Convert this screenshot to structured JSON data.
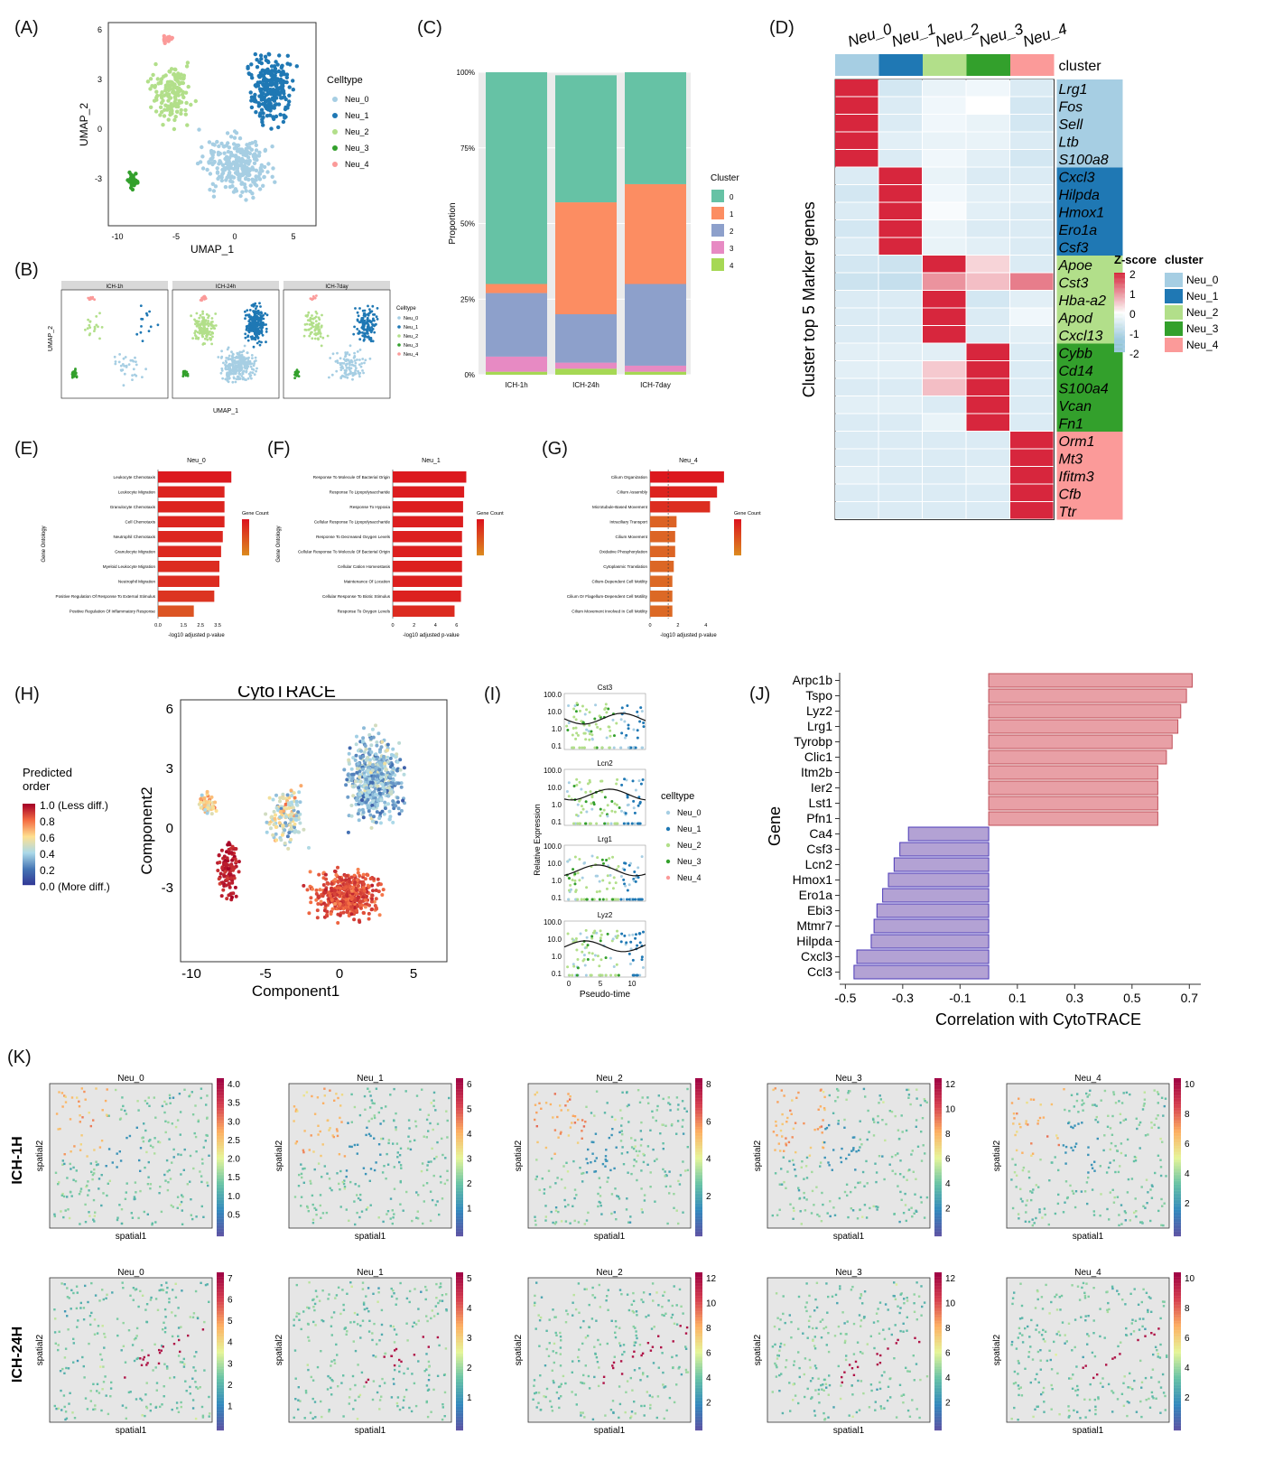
{
  "panel_labels": [
    "(A)",
    "(B)",
    "(C)",
    "(D)",
    "(E)",
    "(F)",
    "(G)",
    "(H)",
    "(I)",
    "(J)",
    "(K)"
  ],
  "colors": {
    "neu_0": "#a6cee3",
    "neu_1": "#1f78b4",
    "neu_2": "#b2df8a",
    "neu_3": "#33a02c",
    "neu_4": "#fb9a99",
    "c0": "#66c2a5",
    "c1": "#fc8d62",
    "c2": "#8da0cb",
    "c3": "#e78ac3",
    "c4": "#a6d854",
    "heat_high": "#d7263d",
    "heat_low": "#9ecae1",
    "corr_pos": "#e8a0a6",
    "corr_neg": "#b3a2d4"
  },
  "panelA": {
    "xlabel": "UMAP_1",
    "ylabel": "UMAP_2",
    "xticks": [
      "-10",
      "-5",
      "0",
      "5"
    ],
    "yticks": [
      "6",
      "3",
      "0",
      "-3"
    ],
    "legend_title": "Celltype",
    "legend": [
      "Neu_0",
      "Neu_1",
      "Neu_2",
      "Neu_3",
      "Neu_4"
    ]
  },
  "panelB": {
    "facets": [
      "ICH-1h",
      "ICH-24h",
      "ICH-7day"
    ],
    "xlabel": "UMAP_1",
    "ylabel": "UMAP_2",
    "legend_title": "Celltype",
    "legend": [
      "Neu_0",
      "Neu_1",
      "Neu_2",
      "Neu_3",
      "Neu_4"
    ]
  },
  "chart_data": [
    {
      "panel": "C",
      "type": "bar",
      "stacked": true,
      "categories": [
        "ICH-1h",
        "ICH-24h",
        "ICH-7day"
      ],
      "ylabel": "Proportion",
      "yticks": [
        "0%",
        "25%",
        "50%",
        "75%",
        "100%"
      ],
      "legend_title": "Cluster",
      "series": [
        {
          "name": "0",
          "values": [
            0.7,
            0.42,
            0.37
          ]
        },
        {
          "name": "1",
          "values": [
            0.03,
            0.37,
            0.33
          ]
        },
        {
          "name": "2",
          "values": [
            0.21,
            0.16,
            0.27
          ]
        },
        {
          "name": "3",
          "values": [
            0.05,
            0.02,
            0.02
          ]
        },
        {
          "name": "4",
          "values": [
            0.01,
            0.02,
            0.01
          ]
        }
      ]
    },
    {
      "panel": "D",
      "type": "heatmap",
      "columns": [
        "Neu_0",
        "Neu_1",
        "Neu_2",
        "Neu_3",
        "Neu_4"
      ],
      "column_annotation_title": "cluster",
      "ylabel": "Cluster top 5 Marker genes",
      "rows": [
        "Lrg1",
        "Fos",
        "Sell",
        "Ltb",
        "S100a8",
        "Cxcl3",
        "Hilpda",
        "Hmox1",
        "Ero1a",
        "Csf3",
        "Apoe",
        "Cst3",
        "Hba-a2",
        "Apod",
        "Cxcl13",
        "Cybb",
        "Cd14",
        "S100a4",
        "Vcan",
        "Fn1",
        "Orm1",
        "Mt3",
        "Ifitm3",
        "Cfb",
        "Ttr"
      ],
      "row_groups": [
        0,
        0,
        0,
        0,
        0,
        1,
        1,
        1,
        1,
        1,
        2,
        2,
        2,
        2,
        2,
        3,
        3,
        3,
        3,
        3,
        4,
        4,
        4,
        4,
        4
      ],
      "scale_title": "Z-score",
      "scale_ticks": [
        "2",
        "1",
        "0",
        "-1",
        "-2"
      ],
      "values": [
        [
          2.0,
          -0.6,
          -0.3,
          -0.2,
          -0.5
        ],
        [
          2.0,
          -0.5,
          -0.2,
          0.0,
          -0.6
        ],
        [
          2.0,
          -0.5,
          -0.2,
          -0.3,
          -0.6
        ],
        [
          2.0,
          -0.4,
          -0.3,
          -0.3,
          -0.5
        ],
        [
          2.0,
          -0.5,
          -0.2,
          -0.4,
          -0.6
        ],
        [
          -0.5,
          2.0,
          -0.3,
          -0.5,
          -0.5
        ],
        [
          -0.6,
          2.0,
          -0.2,
          -0.4,
          -0.4
        ],
        [
          -0.5,
          2.0,
          -0.1,
          -0.4,
          -0.5
        ],
        [
          -0.6,
          2.0,
          -0.3,
          -0.5,
          -0.5
        ],
        [
          -0.5,
          2.0,
          -0.3,
          -0.4,
          -0.5
        ],
        [
          -0.6,
          -0.7,
          2.0,
          0.4,
          -0.5
        ],
        [
          -0.7,
          -0.8,
          1.0,
          0.6,
          1.2
        ],
        [
          -0.5,
          -0.5,
          2.0,
          -0.6,
          -0.4
        ],
        [
          -0.5,
          -0.5,
          2.0,
          -0.5,
          -0.2
        ],
        [
          -0.5,
          -0.5,
          2.0,
          -0.5,
          -0.4
        ],
        [
          -0.4,
          -0.4,
          -0.4,
          2.0,
          -0.5
        ],
        [
          -0.4,
          -0.4,
          0.5,
          2.0,
          -0.5
        ],
        [
          -0.5,
          -0.5,
          0.6,
          2.0,
          -0.5
        ],
        [
          -0.4,
          -0.4,
          -0.5,
          2.0,
          -0.5
        ],
        [
          -0.5,
          -0.5,
          -0.3,
          2.0,
          -0.5
        ],
        [
          -0.5,
          -0.5,
          -0.5,
          -0.5,
          2.0
        ],
        [
          -0.5,
          -0.5,
          -0.5,
          -0.5,
          2.0
        ],
        [
          -0.4,
          -0.5,
          -0.5,
          -0.4,
          2.0
        ],
        [
          -0.5,
          -0.5,
          -0.5,
          -0.5,
          2.0
        ],
        [
          -0.5,
          -0.5,
          -0.5,
          -0.5,
          2.0
        ]
      ]
    },
    {
      "panel": "E",
      "type": "bar",
      "orientation": "horizontal",
      "title": "Neu_0",
      "ylabel": "Gene Ontology",
      "xlabel": "-log10 adjusted p-value",
      "legend_title": "Gene Count",
      "categories": [
        "Leukocyte Chemotaxis",
        "Leukocyte Migration",
        "Granulocyte Chemotaxis",
        "Cell Chemotaxis",
        "Neutrophil Chemotaxis",
        "Granulocyte Migration",
        "Myeloid Leukocyte Migration",
        "Neutrophil Migration",
        "Positive Regulation Of Response To External Stimulus",
        "Positive Regulation Of Inflammatory Response"
      ],
      "values": [
        4.3,
        3.9,
        3.9,
        3.9,
        3.8,
        3.7,
        3.6,
        3.6,
        3.3,
        2.1
      ],
      "xticks": [
        "0.0",
        "1.5",
        "2.5",
        "3.5"
      ]
    },
    {
      "panel": "F",
      "type": "bar",
      "orientation": "horizontal",
      "title": "Neu_1",
      "ylabel": "Gene Ontology",
      "xlabel": "-log10 adjusted p-value",
      "legend_title": "Gene Count",
      "categories": [
        "Response To Molecule Of Bacterial Origin",
        "Response To Lipopolysaccharide",
        "Response To Hypoxia",
        "Cellular Response To Lipopolysaccharide",
        "Response To Decreased Oxygen Levels",
        "Cellular Response To Molecule Of Bacterial Origin",
        "Cellular Cation Homeostasis",
        "Maintenance Of Location",
        "Cellular Response To Biotic Stimulus",
        "Response To Oxygen Levels"
      ],
      "values": [
        6.9,
        6.7,
        6.6,
        6.6,
        6.5,
        6.5,
        6.5,
        6.5,
        6.4,
        5.8
      ],
      "xticks": [
        "0",
        "2",
        "4",
        "6"
      ]
    },
    {
      "panel": "G",
      "type": "bar",
      "orientation": "horizontal",
      "title": "Neu_4",
      "xlabel": "-log10 adjusted p-value",
      "legend_title": "Gene Count",
      "categories": [
        "Cilium Organization",
        "Cilium Assembly",
        "Microtubule-Based Movement",
        "Intraciliary Transport",
        "Cilium Movement",
        "Oxidative Phosphorylation",
        "Cytoplasmic Translation",
        "Cilium-Dependent Cell Motility",
        "Cilium Or Flagellum-Dependent Cell Motility",
        "Cilium Movement Involved In Cell Motility"
      ],
      "values": [
        5.3,
        4.8,
        4.3,
        1.9,
        1.8,
        1.8,
        1.7,
        1.6,
        1.6,
        1.6
      ],
      "xticks": [
        "0",
        "2",
        "4"
      ]
    },
    {
      "panel": "J",
      "type": "bar",
      "orientation": "horizontal",
      "ylabel": "Gene",
      "xlabel": "Correlation with CytoTRACE",
      "categories": [
        "Arpc1b",
        "Tspo",
        "Lyz2",
        "Lrg1",
        "Tyrobp",
        "Clic1",
        "Itm2b",
        "Ier2",
        "Lst1",
        "Pfn1",
        "Ca4",
        "Csf3",
        "Lcn2",
        "Hmox1",
        "Ero1a",
        "Ebi3",
        "Mtmr7",
        "Hilpda",
        "Cxcl3",
        "Ccl3"
      ],
      "values": [
        0.71,
        0.69,
        0.67,
        0.66,
        0.64,
        0.62,
        0.59,
        0.59,
        0.59,
        0.59,
        -0.28,
        -0.31,
        -0.33,
        -0.35,
        -0.37,
        -0.39,
        -0.4,
        -0.41,
        -0.46,
        -0.47
      ],
      "xticks": [
        "-0.5",
        "-0.3",
        "-0.1",
        "0.1",
        "0.3",
        "0.5",
        "0.7"
      ],
      "xlim": [
        -0.52,
        0.74
      ]
    }
  ],
  "panelH": {
    "title": "CytoTRACE",
    "xlabel": "Component1",
    "ylabel": "Component2",
    "xticks": [
      "-10",
      "-5",
      "0",
      "5"
    ],
    "yticks": [
      "6",
      "3",
      "0",
      "-3"
    ],
    "colorbar_title": "Predicted\norder",
    "colorbar_ticks": [
      "1.0 (Less diff.)",
      "0.8",
      "0.6",
      "0.4",
      "0.2",
      "0.0 (More diff.)"
    ]
  },
  "panelI": {
    "genes": [
      "Cst3",
      "Lcn2",
      "Lrg1",
      "Lyz2"
    ],
    "yticks": [
      "100.0",
      "10.0",
      "1.0",
      "0.1"
    ],
    "xticks": [
      "0",
      "5",
      "10"
    ],
    "ylabel": "Relative Expression",
    "xlabel": "Pseudo-time",
    "legend_title": "celltype",
    "legend": [
      "Neu_0",
      "Neu_1",
      "Neu_2",
      "Neu_3",
      "Neu_4"
    ]
  },
  "panelK": {
    "row_labels": [
      "ICH-1H",
      "ICH-24H"
    ],
    "xlabel": "spatial1",
    "ylabel": "spatial2",
    "titles": [
      "Neu_0",
      "Neu_1",
      "Neu_2",
      "Neu_3",
      "Neu_4"
    ],
    "ticks_1h": [
      [
        "4.0",
        "3.5",
        "3.0",
        "2.5",
        "2.0",
        "1.5",
        "1.0",
        "0.5"
      ],
      [
        "6",
        "5",
        "4",
        "3",
        "2",
        "1"
      ],
      [
        "8",
        "6",
        "4",
        "2"
      ],
      [
        "12",
        "10",
        "8",
        "6",
        "4",
        "2"
      ],
      [
        "10",
        "8",
        "6",
        "4",
        "2"
      ]
    ],
    "ticks_24h": [
      [
        "7",
        "6",
        "5",
        "4",
        "3",
        "2",
        "1"
      ],
      [
        "5",
        "4",
        "3",
        "2",
        "1"
      ],
      [
        "12",
        "10",
        "8",
        "6",
        "4",
        "2"
      ],
      [
        "12",
        "10",
        "8",
        "6",
        "4",
        "2"
      ],
      [
        "10",
        "8",
        "6",
        "4",
        "2"
      ]
    ]
  }
}
